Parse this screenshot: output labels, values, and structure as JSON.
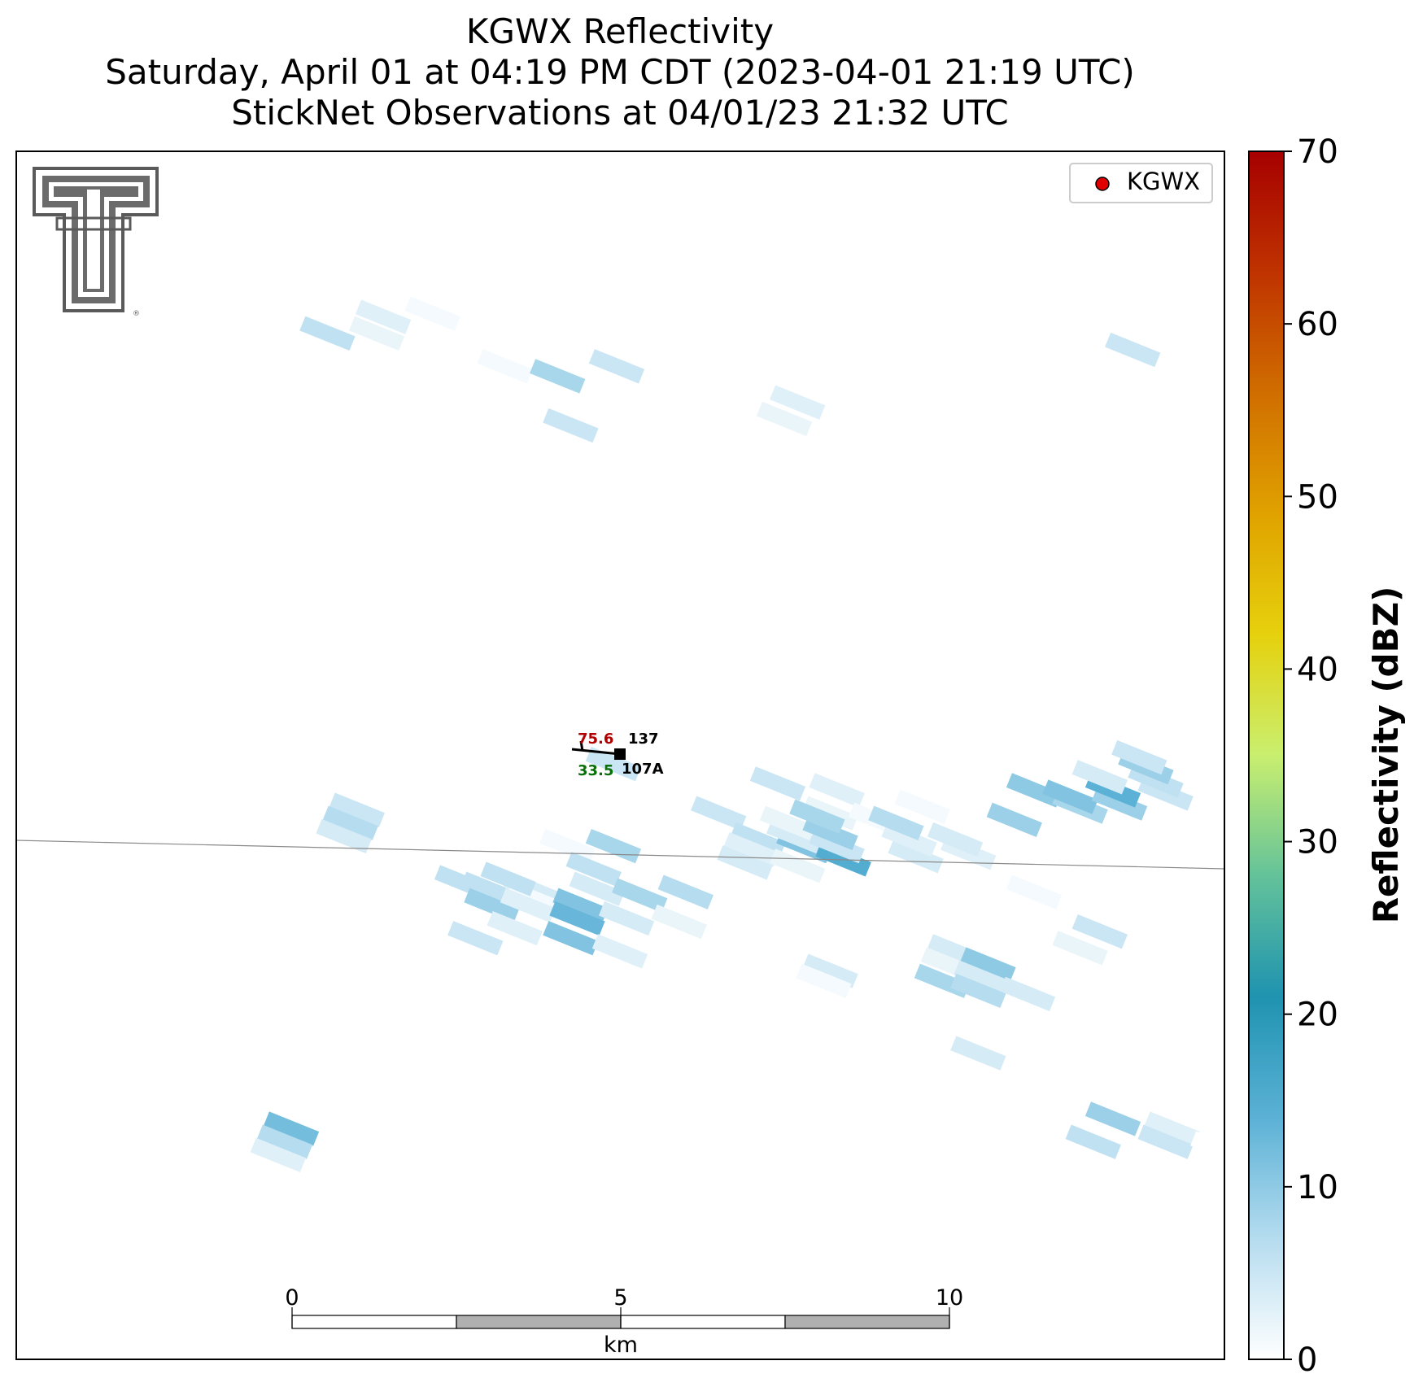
{
  "title": {
    "line1": "KGWX Reflectivity",
    "line2": "Saturday, April 01 at 04:19 PM CDT (2023-04-01 21:19 UTC)",
    "line3": "StickNet Observations at 04/01/23 21:32 UTC"
  },
  "legend": {
    "label": "KGWX",
    "marker_color": "#e00000"
  },
  "colorbar": {
    "label": "Reflectivity (dBZ)",
    "min": 0,
    "max": 70,
    "ticks": [
      "0",
      "10",
      "20",
      "30",
      "40",
      "50",
      "60",
      "70"
    ],
    "stops": [
      "#ffffff",
      "#b5dcef",
      "#5bb1d6",
      "#1f93b0",
      "#63c29a",
      "#c9ef6f",
      "#e6d10d",
      "#e0a200",
      "#d06e00",
      "#bf3300",
      "#a60000"
    ]
  },
  "scalebar": {
    "ticks": [
      "0",
      "5",
      "10"
    ],
    "unit": "km"
  },
  "station": {
    "id": "107A",
    "number": "137",
    "temperature": "75.6",
    "dewpoint": "33.5",
    "temp_color": "#b00000",
    "dew_color": "#0a6e0a"
  },
  "logo": {
    "name": "texas-tech-double-t-logo",
    "color": "#5a5a5a"
  },
  "echoes": [
    {
      "x": -2.0,
      "y": -2.05,
      "dbz": 6
    },
    {
      "x": -1.35,
      "y": -2.05,
      "dbz": 4
    },
    {
      "x": -1.3,
      "y": -2.2,
      "dbz": 1
    },
    {
      "x": -0.8,
      "y": -1.4,
      "dbz": 1
    },
    {
      "x": -0.1,
      "y": -1.4,
      "dbz": 8
    },
    {
      "x": 0.4,
      "y": -0.95,
      "dbz": 0
    },
    {
      "x": 2.4,
      "y": -0.45,
      "dbz": 5
    },
    {
      "x": 3.0,
      "y": -0.25,
      "dbz": 0
    },
    {
      "x": 3.3,
      "y": -0.55,
      "dbz": 3
    },
    {
      "x": 3.2,
      "y": -0.9,
      "dbz": 2
    },
    {
      "x": 3.9,
      "y": -1.0,
      "dbz": 1
    },
    {
      "x": -0.1,
      "y": -0.15,
      "dbz": 5
    },
    {
      "x": 1.5,
      "y": -0.9,
      "dbz": 5
    },
    {
      "x": 2.1,
      "y": -1.3,
      "dbz": 6
    },
    {
      "x": 2.0,
      "y": -1.45,
      "dbz": 3
    },
    {
      "x": 1.9,
      "y": -1.65,
      "dbz": 4
    },
    {
      "x": 2.7,
      "y": -1.7,
      "dbz": 2
    },
    {
      "x": 2.8,
      "y": -1.4,
      "dbz": 11
    },
    {
      "x": 2.65,
      "y": -1.25,
      "dbz": 4
    },
    {
      "x": 2.55,
      "y": -1.05,
      "dbz": 2
    },
    {
      "x": 3.4,
      "y": -1.6,
      "dbz": 15
    },
    {
      "x": 3.3,
      "y": -1.4,
      "dbz": 5
    },
    {
      "x": 3.2,
      "y": -1.2,
      "dbz": 9
    },
    {
      "x": 3.0,
      "y": -0.95,
      "dbz": 8
    },
    {
      "x": 4.5,
      "y": -1.55,
      "dbz": 4
    },
    {
      "x": 4.4,
      "y": -1.3,
      "dbz": 3
    },
    {
      "x": 4.2,
      "y": -1.05,
      "dbz": 7
    },
    {
      "x": 5.3,
      "y": -1.5,
      "dbz": 3
    },
    {
      "x": 5.1,
      "y": -1.3,
      "dbz": 4
    },
    {
      "x": 4.6,
      "y": -0.8,
      "dbz": 1
    },
    {
      "x": 6.0,
      "y": -1.0,
      "dbz": 9
    },
    {
      "x": 6.3,
      "y": -0.55,
      "dbz": 10
    },
    {
      "x": 7.0,
      "y": -0.8,
      "dbz": 8
    },
    {
      "x": 6.85,
      "y": -0.65,
      "dbz": 11
    },
    {
      "x": 7.6,
      "y": -0.75,
      "dbz": 9
    },
    {
      "x": 7.5,
      "y": -0.55,
      "dbz": 14
    },
    {
      "x": 7.3,
      "y": -0.35,
      "dbz": 4
    },
    {
      "x": 8.3,
      "y": -0.6,
      "dbz": 5
    },
    {
      "x": 8.15,
      "y": -0.4,
      "dbz": 6
    },
    {
      "x": 8.0,
      "y": -0.2,
      "dbz": 9
    },
    {
      "x": 7.9,
      "y": -0.05,
      "dbz": 5
    },
    {
      "x": 7.3,
      "y": -2.7,
      "dbz": 5
    },
    {
      "x": -4.0,
      "y": -0.85,
      "dbz": 5
    },
    {
      "x": -4.1,
      "y": -1.05,
      "dbz": 7
    },
    {
      "x": -4.2,
      "y": -1.25,
      "dbz": 4
    },
    {
      "x": -2.4,
      "y": -1.95,
      "dbz": 6
    },
    {
      "x": -1.7,
      "y": -1.9,
      "dbz": 6
    },
    {
      "x": -1.95,
      "y": -2.3,
      "dbz": 9
    },
    {
      "x": -1.4,
      "y": -2.3,
      "dbz": 3
    },
    {
      "x": -2.2,
      "y": -2.8,
      "dbz": 5
    },
    {
      "x": -1.6,
      "y": -2.65,
      "dbz": 3
    },
    {
      "x": -0.4,
      "y": -1.75,
      "dbz": 6
    },
    {
      "x": -0.35,
      "y": -2.05,
      "dbz": 4
    },
    {
      "x": -0.6,
      "y": -2.3,
      "dbz": 11
    },
    {
      "x": -0.65,
      "y": -2.5,
      "dbz": 13
    },
    {
      "x": -0.75,
      "y": -2.8,
      "dbz": 11
    },
    {
      "x": 0.1,
      "y": -2.5,
      "dbz": 4
    },
    {
      "x": 0.3,
      "y": -2.15,
      "dbz": 8
    },
    {
      "x": 0.9,
      "y": -2.55,
      "dbz": 2
    },
    {
      "x": 0.0,
      "y": -3.0,
      "dbz": 3
    },
    {
      "x": 1.0,
      "y": -2.1,
      "dbz": 7
    },
    {
      "x": 3.2,
      "y": -3.3,
      "dbz": 4
    },
    {
      "x": 3.1,
      "y": -3.45,
      "dbz": 1
    },
    {
      "x": 5.1,
      "y": -3.0,
      "dbz": 4
    },
    {
      "x": 5.0,
      "y": -3.2,
      "dbz": 2
    },
    {
      "x": 4.9,
      "y": -3.45,
      "dbz": 8
    },
    {
      "x": 5.6,
      "y": -3.2,
      "dbz": 10
    },
    {
      "x": 5.5,
      "y": -3.4,
      "dbz": 4
    },
    {
      "x": 5.45,
      "y": -3.6,
      "dbz": 7
    },
    {
      "x": 6.2,
      "y": -3.65,
      "dbz": 4
    },
    {
      "x": 5.45,
      "y": -4.55,
      "dbz": 4
    },
    {
      "x": 6.3,
      "y": -2.1,
      "dbz": 1
    },
    {
      "x": 7.0,
      "y": -2.95,
      "dbz": 2
    },
    {
      "x": -5.6,
      "y": -5.6,
      "dbz": 0
    },
    {
      "x": -5.0,
      "y": -5.7,
      "dbz": 12
    },
    {
      "x": -5.1,
      "y": -5.9,
      "dbz": 7
    },
    {
      "x": -5.2,
      "y": -6.1,
      "dbz": 3
    },
    {
      "x": 7.5,
      "y": -5.55,
      "dbz": 9
    },
    {
      "x": 8.4,
      "y": -5.7,
      "dbz": 3
    },
    {
      "x": 8.3,
      "y": -5.9,
      "dbz": 5
    },
    {
      "x": 7.2,
      "y": -5.9,
      "dbz": 6
    },
    {
      "x": 9.1,
      "y": -6.0,
      "dbz": 0
    },
    {
      "x": -2.85,
      "y": 6.7,
      "dbz": 1
    },
    {
      "x": -4.45,
      "y": 6.4,
      "dbz": 6
    },
    {
      "x": -3.6,
      "y": 6.65,
      "dbz": 3
    },
    {
      "x": -3.7,
      "y": 6.4,
      "dbz": 2
    },
    {
      "x": -1.75,
      "y": 5.9,
      "dbz": 1
    },
    {
      "x": -0.95,
      "y": 5.75,
      "dbz": 8
    },
    {
      "x": -0.05,
      "y": 5.9,
      "dbz": 5
    },
    {
      "x": 1.0,
      "y": 5.6,
      "dbz": 0
    },
    {
      "x": 1.8,
      "y": 5.45,
      "dbz": 0
    },
    {
      "x": 2.7,
      "y": 5.35,
      "dbz": 3
    },
    {
      "x": 2.5,
      "y": 5.1,
      "dbz": 2
    },
    {
      "x": -0.75,
      "y": 5.0,
      "dbz": 5
    },
    {
      "x": 7.8,
      "y": 6.15,
      "dbz": 5
    }
  ]
}
